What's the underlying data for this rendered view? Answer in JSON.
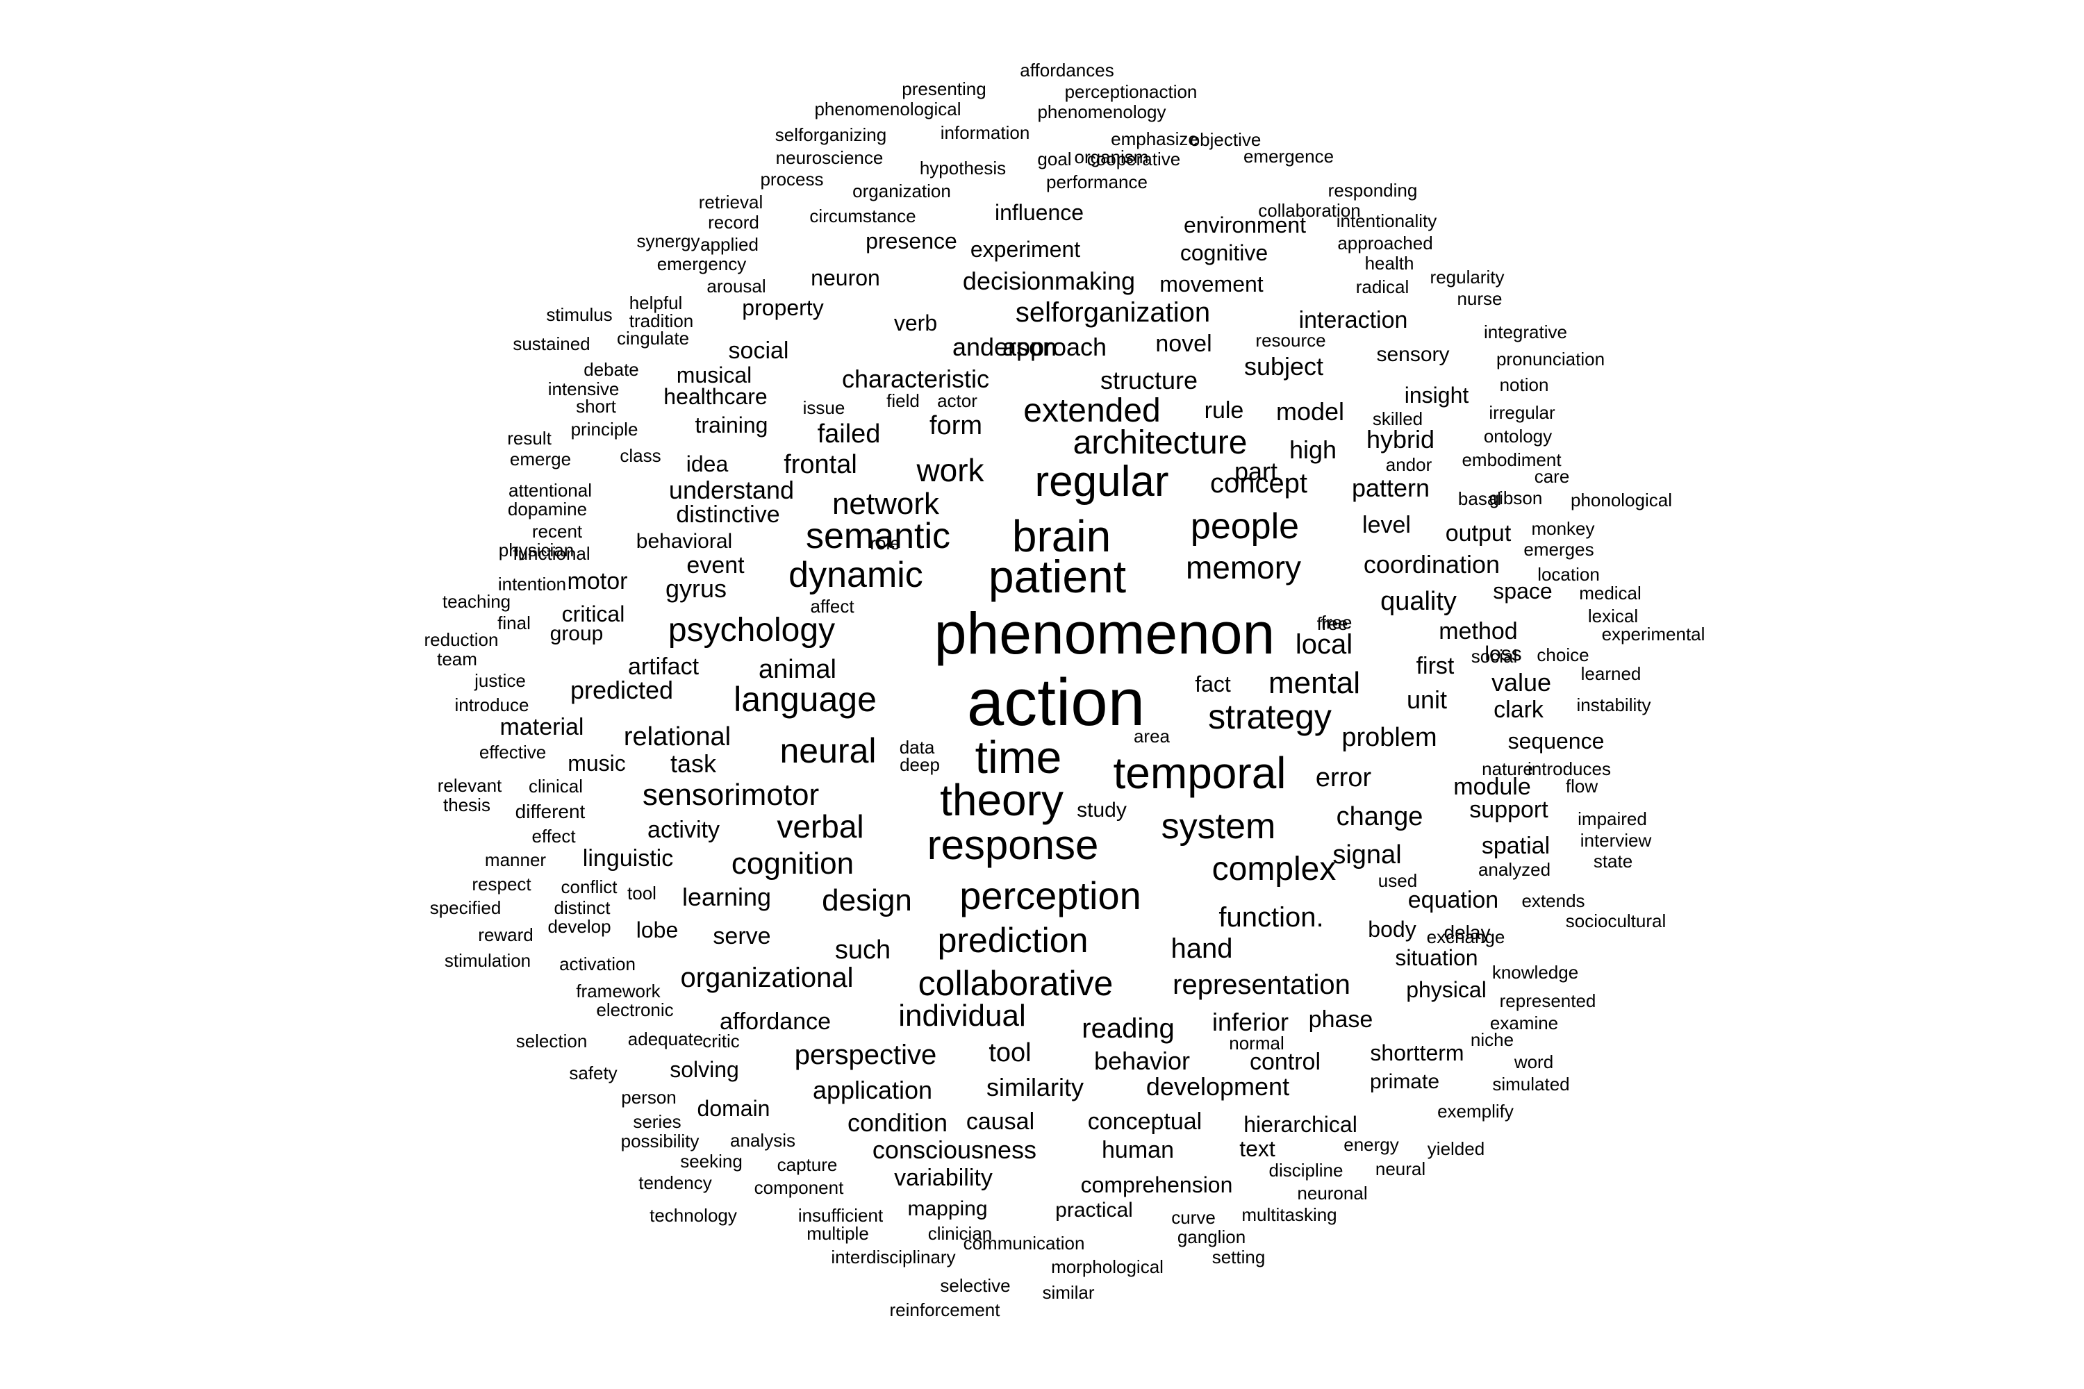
{
  "words": [
    "phenomenon",
    "action",
    "patient",
    "brain",
    "regular",
    "time",
    "theory",
    "temporal",
    "response",
    "semantic",
    "dynamic",
    "perception",
    "memory",
    "people",
    "psychology",
    "language",
    "strategy",
    "neural",
    "system",
    "complex",
    "collaborative",
    "prediction",
    "architecture",
    "extended",
    "network",
    "work",
    "mental",
    "sensorimotor",
    "verbal",
    "cognition",
    "individual",
    "organizational",
    "design",
    "function.",
    "representation",
    "hand",
    "reading",
    "tool",
    "perspective",
    "concept",
    "coordination",
    "selforganization",
    "decisionmaking",
    "local",
    "quality",
    "change",
    "problem",
    "error",
    "signal",
    "such",
    "characteristic",
    "structure",
    "approach",
    "anderson",
    "subject",
    "understand",
    "frontal",
    "failed",
    "form",
    "model",
    "high",
    "rule",
    "interaction",
    "movement",
    "experiment",
    "environment",
    "influence",
    "presence",
    "cognitive",
    "neuron",
    "property",
    "verb",
    "social",
    "novel",
    "musical",
    "healthcare",
    "training",
    "idea",
    "distinctive",
    "behavioral",
    "event",
    "gyrus",
    "animal",
    "artifact",
    "predicted",
    "relational",
    "task",
    "music",
    "material",
    "activity",
    "linguistic",
    "learning",
    "serve",
    "lobe",
    "affordance",
    "solving",
    "domain",
    "application",
    "similarity",
    "condition",
    "causal",
    "consciousness",
    "variability",
    "mapping",
    "practical",
    "comprehension",
    "human",
    "conceptual",
    "text",
    "hierarchical",
    "development",
    "behavior",
    "control",
    "inferior",
    "phase",
    "shortterm",
    "primate",
    "physical",
    "situation",
    "body",
    "equation",
    "spatial",
    "support",
    "module",
    "sequence",
    "clark",
    "value",
    "unit",
    "first",
    "method",
    "output",
    "level",
    "pattern",
    "hybrid",
    "insight",
    "sensory",
    "part",
    "fact",
    "study",
    "space",
    "loss",
    "delay",
    "motor",
    "critical",
    "group",
    "functional",
    "intention",
    "teaching",
    "reduction",
    "team",
    "justice",
    "introduce",
    "effective",
    "relevant",
    "thesis",
    "different",
    "effect",
    "manner",
    "respect",
    "specified",
    "reward",
    "stimulation",
    "activation",
    "framework",
    "electronic",
    "selection",
    "adequate",
    "critic",
    "safety",
    "person",
    "series",
    "possibility",
    "analysis",
    "seeking",
    "capture",
    "tendency",
    "component",
    "technology",
    "insufficient",
    "multiple",
    "clinician",
    "interdisciplinary",
    "communication",
    "morphological",
    "selective",
    "similar",
    "reinforcement",
    "curve",
    "ganglion",
    "setting",
    "multitasking",
    "discipline",
    "neuronal",
    "energy",
    "neural",
    "yielded",
    "exemplify",
    "niche",
    "word",
    "simulated",
    "examine",
    "represented",
    "knowledge",
    "exchange",
    "sociocultural",
    "extends",
    "analyzed",
    "used",
    "state",
    "interview",
    "impaired",
    "flow",
    "introduces",
    "nature",
    "instability",
    "learned",
    "social",
    "choice",
    "experimental",
    "lexical",
    "medical",
    "location",
    "emerges",
    "monkey",
    "phonological",
    "care",
    "gibson",
    "basal",
    "embodiment",
    "andor",
    "ontology",
    "skilled",
    "irregular",
    "notion",
    "pronunciation",
    "integrative",
    "nurse",
    "regularity",
    "radical",
    "health",
    "approached",
    "intentionality",
    "collaboration",
    "responding",
    "emergence",
    "objective",
    "phenomenology",
    "emphasize",
    "organism",
    "perceptionaction",
    "affordances",
    "presenting",
    "phenomenological",
    "information",
    "selforganizing",
    "goal",
    "cooperative",
    "neuroscience",
    "hypothesis",
    "performance",
    "process",
    "organization",
    "retrieval",
    "circumstance",
    "record",
    "synergy",
    "applied",
    "emergency",
    "arousal",
    "helpful",
    "tradition",
    "stimulus",
    "cingulate",
    "sustained",
    "debate",
    "intensive",
    "short",
    "issue",
    "field",
    "actor",
    "result",
    "emerge",
    "class",
    "principle",
    "attentional",
    "dopamine",
    "recent",
    "physician",
    "role",
    "affect",
    "final",
    "free",
    "area",
    "data",
    "deep",
    "clinical",
    "conflict",
    "distinct",
    "develop",
    "tool",
    "resource",
    "free",
    "normal"
  ]
}
